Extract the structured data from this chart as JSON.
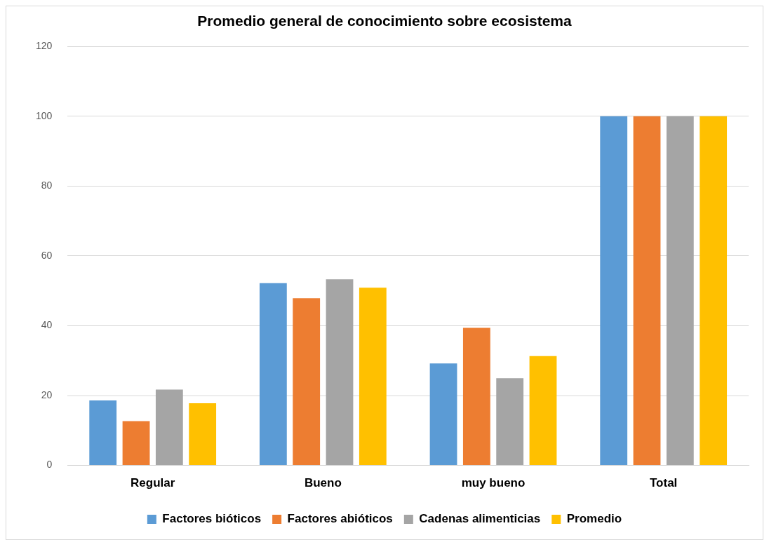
{
  "chart_data": {
    "type": "bar",
    "title": "Promedio general de conocimiento sobre ecosistema",
    "categories": [
      "Regular",
      "Bueno",
      "muy bueno",
      "Total"
    ],
    "series": [
      {
        "name": "Factores bióticos",
        "color": "#5b9bd5",
        "values": [
          18.6,
          52.2,
          29.2,
          100
        ]
      },
      {
        "name": "Factores abióticos",
        "color": "#ed7d31",
        "values": [
          12.7,
          47.9,
          39.4,
          100
        ]
      },
      {
        "name": "Cadenas alimenticias",
        "color": "#a5a5a5",
        "values": [
          21.7,
          53.3,
          25,
          100
        ]
      },
      {
        "name": "Promedio",
        "color": "#ffc000",
        "values": [
          17.8,
          50.9,
          31.3,
          100
        ]
      }
    ],
    "ylim": [
      0,
      120
    ],
    "yticks": [
      0,
      20,
      40,
      60,
      80,
      100,
      120
    ],
    "grid": "y",
    "legend": "bottom"
  }
}
